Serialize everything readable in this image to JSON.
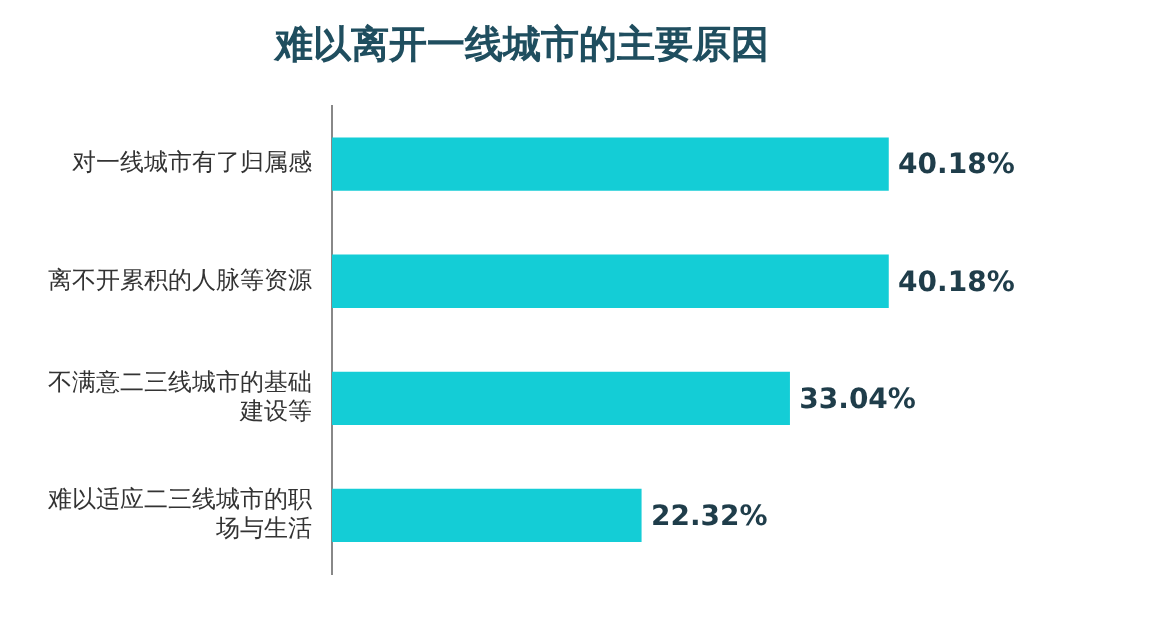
{
  "chart_data": {
    "type": "bar",
    "orientation": "horizontal",
    "title": "难以离开一线城市的主要原因",
    "categories": [
      "对一线城市有了归属感",
      "离不开累积的人脉等资源",
      "不满意二三线城市的基础建设等",
      "难以适应二三线城市的职场与生活"
    ],
    "values": [
      40.18,
      40.18,
      33.04,
      22.32
    ],
    "value_labels": [
      "40.18%",
      "40.18%",
      "33.04%",
      "22.32%"
    ],
    "color": "#14cdd6",
    "legend": false
  }
}
